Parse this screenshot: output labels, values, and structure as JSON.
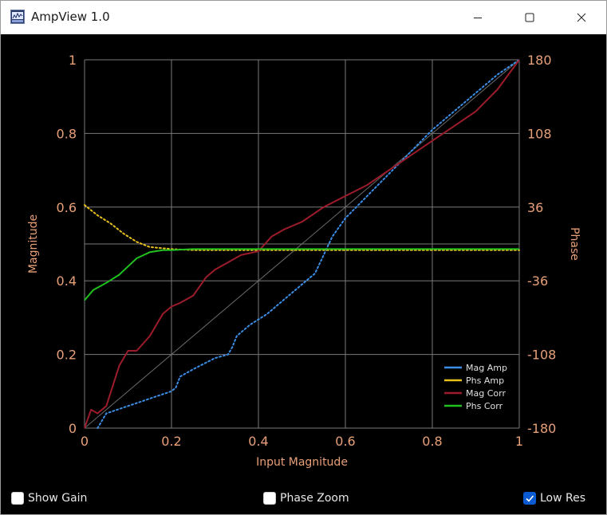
{
  "window": {
    "title": "AmpView 1.0",
    "controls": {
      "minimize_icon": "minimize-icon",
      "maximize_icon": "maximize-icon",
      "close_icon": "close-icon"
    }
  },
  "colors": {
    "background": "#000000",
    "grid": "#7a7a7a",
    "tick_text": "#e8a078",
    "axis_title": "#e8a078",
    "diagonal": "#6a6a6a",
    "mag_amp": "#3a8ee6",
    "phs_amp": "#e8c21c",
    "mag_corr": "#9c1c2c",
    "phs_corr": "#20c020"
  },
  "chart_data": {
    "type": "line",
    "xlabel": "Input Magnitude",
    "ylabel": "Magnitude",
    "y2label": "Phase",
    "xlim": [
      0,
      1
    ],
    "ylim": [
      0,
      1
    ],
    "y2lim": [
      -180,
      180
    ],
    "x_ticks": [
      "0",
      "0.2",
      "0.4",
      "0.6",
      "0.8",
      "1"
    ],
    "y_ticks": [
      "0",
      "0.2",
      "0.4",
      "0.6",
      "0.8",
      "1"
    ],
    "y2_ticks": [
      "-180",
      "-108",
      "-36",
      "36",
      "108",
      "180"
    ],
    "grid": true,
    "legend_position": "bottom-right",
    "series": [
      {
        "name": "Mag Amp",
        "color": "#3a8ee6",
        "style": "dotted",
        "axis": "left",
        "x": [
          0.03,
          0.05,
          0.1,
          0.15,
          0.2,
          0.21,
          0.22,
          0.25,
          0.3,
          0.33,
          0.34,
          0.35,
          0.38,
          0.42,
          0.45,
          0.5,
          0.53,
          0.55,
          0.57,
          0.6,
          0.65,
          0.7,
          0.75,
          0.8,
          0.85,
          0.9,
          0.95,
          1.0
        ],
        "y": [
          0.0,
          0.04,
          0.06,
          0.08,
          0.1,
          0.11,
          0.14,
          0.16,
          0.19,
          0.2,
          0.22,
          0.25,
          0.28,
          0.31,
          0.34,
          0.39,
          0.42,
          0.47,
          0.52,
          0.57,
          0.63,
          0.69,
          0.75,
          0.81,
          0.86,
          0.91,
          0.96,
          1.0
        ]
      },
      {
        "name": "Phs Amp",
        "color": "#e8c21c",
        "style": "dotted",
        "axis": "right",
        "x": [
          0.0,
          0.03,
          0.06,
          0.09,
          0.12,
          0.15,
          0.2,
          0.25,
          0.3,
          0.4,
          0.5,
          0.6,
          0.7,
          0.8,
          0.9,
          1.0
        ],
        "y": [
          38,
          28,
          20,
          10,
          2,
          -3,
          -5,
          -6,
          -6,
          -6,
          -6,
          -6,
          -6,
          -6,
          -6,
          -6
        ]
      },
      {
        "name": "Mag Corr",
        "color": "#9c1c2c",
        "style": "solid",
        "axis": "left",
        "x": [
          0.0,
          0.015,
          0.03,
          0.05,
          0.08,
          0.1,
          0.12,
          0.15,
          0.18,
          0.2,
          0.22,
          0.25,
          0.28,
          0.3,
          0.33,
          0.36,
          0.4,
          0.43,
          0.46,
          0.5,
          0.55,
          0.6,
          0.65,
          0.7,
          0.75,
          0.8,
          0.85,
          0.9,
          0.95,
          1.0
        ],
        "y": [
          0.0,
          0.05,
          0.04,
          0.06,
          0.17,
          0.21,
          0.21,
          0.25,
          0.31,
          0.33,
          0.34,
          0.36,
          0.41,
          0.43,
          0.45,
          0.47,
          0.48,
          0.52,
          0.54,
          0.56,
          0.6,
          0.63,
          0.66,
          0.7,
          0.74,
          0.78,
          0.82,
          0.86,
          0.92,
          1.0
        ]
      },
      {
        "name": "Phs Corr",
        "color": "#20c020",
        "style": "solid",
        "axis": "right",
        "x": [
          0.0,
          0.02,
          0.05,
          0.08,
          0.1,
          0.12,
          0.15,
          0.18,
          0.2,
          0.25,
          0.3,
          0.4,
          0.5,
          0.6,
          0.7,
          0.8,
          0.9,
          1.0
        ],
        "y": [
          -55,
          -45,
          -38,
          -30,
          -22,
          -14,
          -8,
          -6,
          -6,
          -5,
          -5,
          -5,
          -5,
          -5,
          -5,
          -5,
          -5,
          -5
        ]
      }
    ]
  },
  "controls": {
    "show_gain": {
      "label": "Show Gain",
      "checked": false
    },
    "phase_zoom": {
      "label": "Phase Zoom",
      "checked": false
    },
    "low_res": {
      "label": "Low Res",
      "checked": true
    }
  }
}
